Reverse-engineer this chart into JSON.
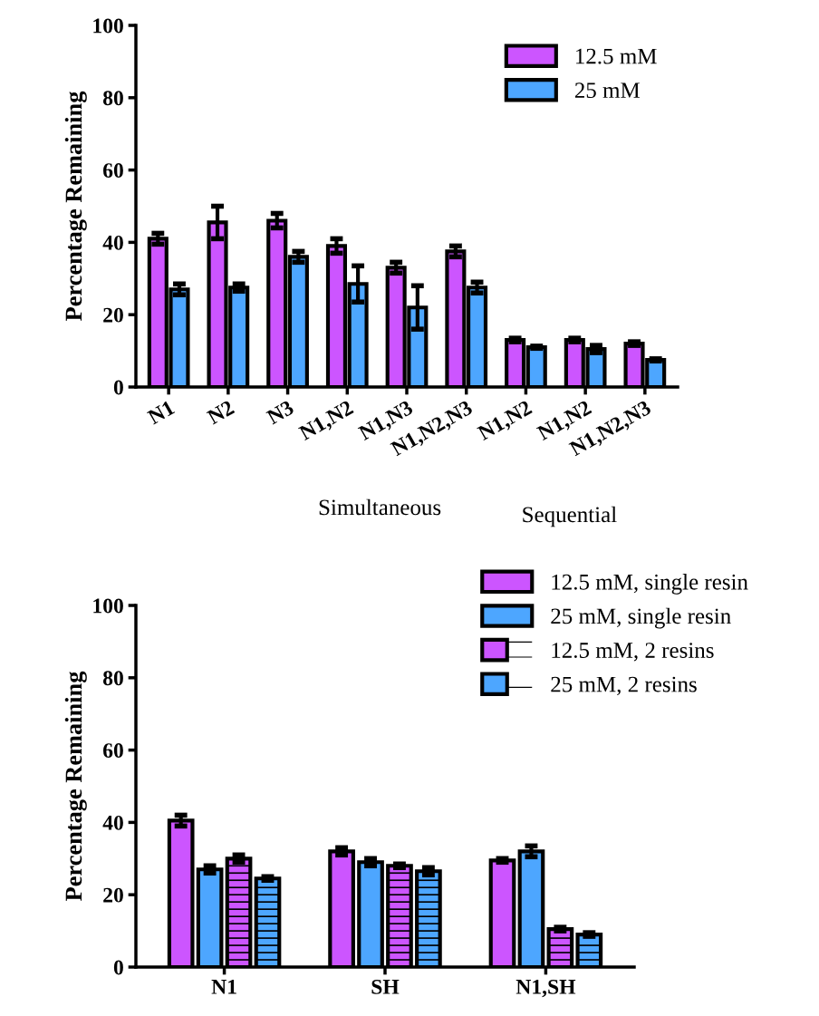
{
  "chart_data": [
    {
      "type": "bar",
      "ylabel": "Percentage Remaining",
      "categories": [
        "N1",
        "N2",
        "N3",
        "N1,N2",
        "N1,N3",
        "N1,N2,N3",
        "N1,N2",
        "N1,N2",
        "N1,N2,N3"
      ],
      "ylim": [
        0,
        100
      ],
      "yticks": [
        0,
        20,
        40,
        60,
        80,
        100
      ],
      "grid": false,
      "legend": "top right",
      "series": [
        {
          "name": "12.5 mM",
          "color": "#cc55ff",
          "values": [
            41,
            45.5,
            46,
            39,
            33,
            37.5,
            13,
            13,
            12
          ],
          "errors": [
            1.5,
            4.5,
            2,
            2,
            1.5,
            1.5,
            0.5,
            0.5,
            0.5
          ]
        },
        {
          "name": "25 mM",
          "color": "#4da6ff",
          "values": [
            27,
            27.5,
            36,
            28.5,
            22,
            27.5,
            11,
            10.5,
            7.5
          ],
          "errors": [
            1.5,
            1,
            1.5,
            5,
            6,
            1.5,
            0.3,
            1,
            0.3
          ]
        }
      ],
      "annotations": [
        "Simultaneous",
        "Sequential"
      ]
    },
    {
      "type": "bar",
      "ylabel": "Percentage Remaining",
      "categories": [
        "N1",
        "SH",
        "N1,SH"
      ],
      "ylim": [
        0,
        100
      ],
      "yticks": [
        0,
        20,
        40,
        60,
        80,
        100
      ],
      "grid": false,
      "legend": "top right",
      "series": [
        {
          "name": "12.5 mM, single resin",
          "color": "#cc55ff",
          "values": [
            40.5,
            32,
            29.5
          ],
          "errors": [
            1.5,
            1,
            0.5
          ]
        },
        {
          "name": "25 mM, single resin",
          "color": "#4da6ff",
          "values": [
            27,
            29,
            32
          ],
          "errors": [
            1,
            1,
            1.5
          ]
        },
        {
          "name": "12.5 mM, 2 resins",
          "color": "#cc55ff",
          "values": [
            30,
            28,
            10.5
          ],
          "errors": [
            1,
            0.5,
            0.5
          ]
        },
        {
          "name": "25 mM, 2 resins",
          "color": "#4da6ff",
          "values": [
            24.5,
            26.5,
            9
          ],
          "errors": [
            0.5,
            1,
            0.5
          ]
        }
      ]
    }
  ]
}
